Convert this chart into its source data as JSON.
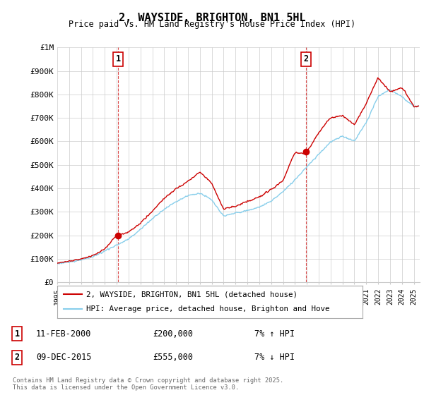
{
  "title": "2, WAYSIDE, BRIGHTON, BN1 5HL",
  "subtitle": "Price paid vs. HM Land Registry's House Price Index (HPI)",
  "ylabel_ticks": [
    "£1M",
    "£900K",
    "£800K",
    "£700K",
    "£600K",
    "£500K",
    "£400K",
    "£300K",
    "£200K",
    "£100K",
    "£0"
  ],
  "ytick_values": [
    1000000,
    900000,
    800000,
    700000,
    600000,
    500000,
    400000,
    300000,
    200000,
    100000,
    0
  ],
  "ylim": [
    0,
    1000000
  ],
  "xlim_start": 1995.0,
  "xlim_end": 2025.5,
  "sale1_year": 2000.12,
  "sale1_price": 200000,
  "sale2_year": 2015.92,
  "sale2_price": 555000,
  "sale1_date": "11-FEB-2000",
  "sale1_pct": "7% ↑ HPI",
  "sale2_date": "09-DEC-2015",
  "sale2_pct": "7% ↓ HPI",
  "line1_color": "#cc0000",
  "line2_color": "#87CEEB",
  "vline_color": "#cc0000",
  "marker_box_color": "#cc0000",
  "bg_color": "#ffffff",
  "grid_color": "#cccccc",
  "legend1": "2, WAYSIDE, BRIGHTON, BN1 5HL (detached house)",
  "legend2": "HPI: Average price, detached house, Brighton and Hove",
  "footnote": "Contains HM Land Registry data © Crown copyright and database right 2025.\nThis data is licensed under the Open Government Licence v3.0.",
  "xtick_years": [
    1995,
    1996,
    1997,
    1998,
    1999,
    2000,
    2001,
    2002,
    2003,
    2004,
    2005,
    2006,
    2007,
    2008,
    2009,
    2010,
    2011,
    2012,
    2013,
    2014,
    2015,
    2016,
    2017,
    2018,
    2019,
    2020,
    2021,
    2022,
    2023,
    2024,
    2025
  ],
  "hpi_kx": [
    1995,
    1996,
    1997,
    1998,
    1999,
    2000,
    2001,
    2002,
    2003,
    2004,
    2005,
    2006,
    2007,
    2008,
    2009,
    2010,
    2011,
    2012,
    2013,
    2014,
    2015,
    2016,
    2017,
    2018,
    2019,
    2020,
    2021,
    2022,
    2023,
    2024,
    2025
  ],
  "hpi_ky": [
    80000,
    87000,
    97000,
    110000,
    135000,
    160000,
    185000,
    225000,
    270000,
    310000,
    340000,
    370000,
    380000,
    350000,
    280000,
    295000,
    305000,
    320000,
    345000,
    385000,
    435000,
    490000,
    545000,
    595000,
    620000,
    600000,
    680000,
    790000,
    820000,
    790000,
    750000
  ],
  "price_kx": [
    1995,
    1996,
    1997,
    1998,
    1999,
    2000,
    2001,
    2002,
    2003,
    2004,
    2005,
    2006,
    2007,
    2008,
    2009,
    2010,
    2011,
    2012,
    2013,
    2014,
    2015,
    2016,
    2017,
    2018,
    2019,
    2020,
    2021,
    2022,
    2023,
    2024,
    2025
  ],
  "price_ky": [
    83000,
    91000,
    101000,
    116000,
    143000,
    200000,
    215000,
    255000,
    305000,
    360000,
    400000,
    430000,
    470000,
    420000,
    310000,
    320000,
    340000,
    360000,
    390000,
    430000,
    555000,
    590000,
    640000,
    700000,
    710000,
    670000,
    760000,
    870000,
    810000,
    830000,
    750000
  ]
}
